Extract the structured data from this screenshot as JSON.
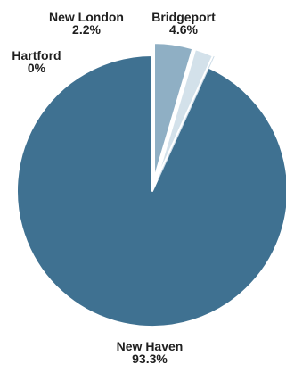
{
  "chart_data": {
    "type": "pie",
    "title": "",
    "start_angle_deg": 0,
    "direction": "counterclockwise",
    "slices": [
      {
        "label": "New Haven",
        "value": 93.3,
        "display": "93.3%",
        "color": "#3f7191",
        "exploded": false
      },
      {
        "label": "Hartford",
        "value": 0.0,
        "display": "0%",
        "color": "#c9dae6",
        "exploded": true
      },
      {
        "label": "New London",
        "value": 2.2,
        "display": "2.2%",
        "color": "#d3e1ea",
        "exploded": true
      },
      {
        "label": "Bridgeport",
        "value": 4.6,
        "display": "4.6%",
        "color": "#8fafc4",
        "exploded": true
      }
    ]
  }
}
